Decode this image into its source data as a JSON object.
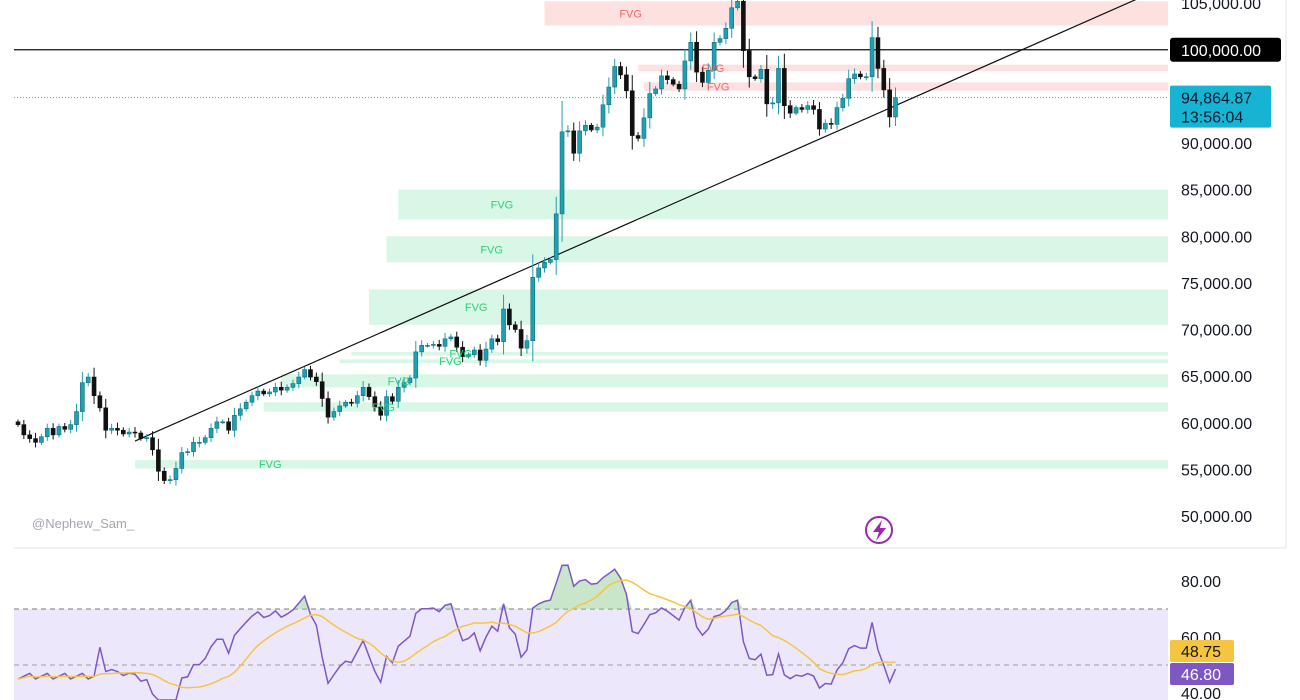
{
  "watermark": "@Nephew_Sam_",
  "colors": {
    "up": "#26a69a",
    "upBody": "#1f9fb1",
    "down": "#111111",
    "bullFvg": "#d9f7e6",
    "bullFvgText": "#2bd07a",
    "bearFvg": "#fde1e1",
    "bearFvgText": "#f06767",
    "lastPrice": "#17b3d2",
    "rsi": "#7e57c2",
    "rsiMa": "#f5c542",
    "rsiBand": "#ede7fb"
  },
  "price_axis": {
    "ticks": [
      "105,000.00",
      "100,000.00",
      "90,000.00",
      "85,000.00",
      "80,000.00",
      "75,000.00",
      "70,000.00",
      "65,000.00",
      "60,000.00",
      "55,000.00",
      "50,000.00"
    ],
    "tick_values": [
      105000,
      100000,
      90000,
      85000,
      80000,
      75000,
      70000,
      65000,
      60000,
      55000,
      50000
    ],
    "highlight_label": "100,000.00",
    "last_price_label": "94,864.87",
    "countdown": "13:56:04"
  },
  "rsi_axis": {
    "ticks": [
      "80.00",
      "60.00",
      "40.00"
    ],
    "tick_values": [
      80,
      60,
      40
    ],
    "ma_label": "48.75",
    "rsi_label": "46.80"
  },
  "chart_data": [
    {
      "type": "candlestick",
      "title": "",
      "ylim": [
        47500,
        105300
      ],
      "horizontal_line": 100000,
      "last_price": 94864.87,
      "trendline": [
        {
          "bar": 0,
          "price": 52500
        },
        {
          "bar": 142,
          "price": 91800
        }
      ],
      "bull_fvg": [
        {
          "from": 81800,
          "to": 85000,
          "label": "FVG",
          "start_bar": 65
        },
        {
          "from": 77200,
          "to": 80000,
          "label": "FVG",
          "start_bar": 63
        },
        {
          "from": 70500,
          "to": 74300,
          "label": "FVG",
          "start_bar": 60
        },
        {
          "from": 67200,
          "to": 67600,
          "label": "FVG",
          "start_bar": 57
        },
        {
          "from": 66400,
          "to": 66800,
          "label": "FVG",
          "start_bar": 55
        },
        {
          "from": 63800,
          "to": 65200,
          "label": "FVG",
          "start_bar": 45
        },
        {
          "from": 61200,
          "to": 62200,
          "label": "FVG",
          "start_bar": 42
        },
        {
          "from": 55100,
          "to": 56000,
          "label": "FVG",
          "start_bar": 20
        }
      ],
      "bear_fvg": [
        {
          "from": 102600,
          "to": 105200,
          "label": "FVG",
          "start_bar": 90
        },
        {
          "from": 97700,
          "to": 98400,
          "label": "FVG",
          "start_bar": 106
        },
        {
          "from": 95600,
          "to": 96500,
          "label": "FVG",
          "start_bar": 107
        }
      ],
      "close": [
        59800,
        58700,
        58300,
        57900,
        58500,
        59400,
        58700,
        59600,
        59300,
        59800,
        61200,
        64300,
        64900,
        62900,
        61600,
        59200,
        59400,
        59200,
        58800,
        59000,
        58900,
        58300,
        58400,
        57100,
        54800,
        53800,
        53900,
        55100,
        56800,
        56900,
        57900,
        57900,
        58400,
        59400,
        60100,
        60100,
        59200,
        60800,
        61500,
        62200,
        62900,
        63400,
        63100,
        63300,
        63800,
        63500,
        63800,
        64200,
        64900,
        65700,
        64900,
        64400,
        62600,
        60600,
        61200,
        61800,
        62200,
        62100,
        62900,
        63800,
        62800,
        61700,
        60800,
        62800,
        62300,
        63800,
        64300,
        64800,
        67600,
        68300,
        68300,
        68400,
        68200,
        69000,
        69200,
        68100,
        67100,
        67300,
        67800,
        66700,
        67900,
        69000,
        68700,
        72200,
        70500,
        70000,
        68000,
        68800,
        75600,
        76600,
        77200,
        77500,
        82400,
        91200,
        91300,
        88900,
        91300,
        91900,
        91400,
        91700,
        94100,
        96000,
        98200,
        97300,
        95600,
        90800,
        90500,
        92700,
        95300,
        95800,
        97200,
        96800,
        96300,
        95800,
        98800,
        100800,
        97600,
        96500,
        97800,
        100800,
        101200,
        102300,
        104500,
        105200,
        99900,
        97100,
        96900,
        97900,
        94200,
        94300,
        98000,
        94000,
        93200,
        93800,
        93600,
        94000,
        93600,
        91500,
        92100,
        92000,
        93800,
        94800,
        96900,
        97400,
        97100,
        97100,
        101300,
        98000,
        95700,
        92800,
        94864.87
      ],
      "rsi": {
        "range": [
          30,
          90
        ],
        "overbought": 70,
        "oversold": 30,
        "midline": 50
      },
      "rsi_values": [
        46.8,
        48.75
      ]
    }
  ]
}
